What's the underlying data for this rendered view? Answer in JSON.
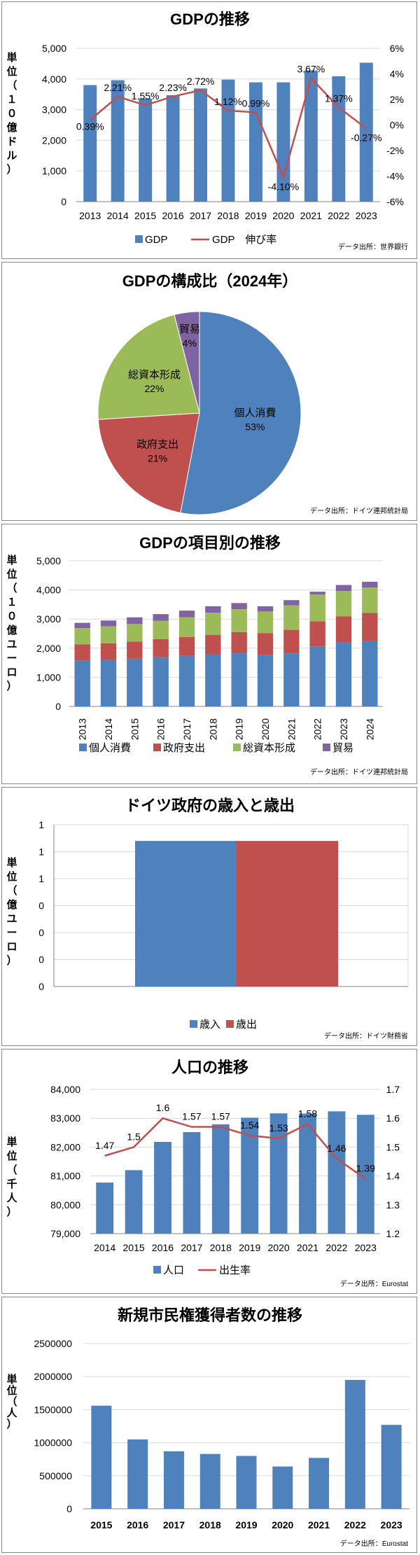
{
  "colors": {
    "blue": "#4f81bd",
    "red": "#c0504d",
    "green": "#9bbb59",
    "purple": "#8064a2",
    "line": "#c0504d",
    "grid": "#d9d9d9"
  },
  "chart_data": [
    {
      "id": "c1",
      "type": "bar+line",
      "title": "GDPの推移",
      "ylabel": "単位（１０億ドル）",
      "source": "データ出所：世界銀行",
      "categories": [
        "2013",
        "2014",
        "2015",
        "2016",
        "2017",
        "2018",
        "2019",
        "2020",
        "2021",
        "2022",
        "2023"
      ],
      "ylim": [
        0,
        5000
      ],
      "yticks": [
        "0",
        "1,000",
        "2,000",
        "3,000",
        "4,000",
        "5,000"
      ],
      "y2lim": [
        -6,
        6
      ],
      "y2ticks": [
        "-6%",
        "-4%",
        "-2%",
        "0%",
        "2%",
        "4%",
        "6%"
      ],
      "series": [
        {
          "name": "GDP",
          "type": "bar",
          "values": [
            3800,
            3960,
            3360,
            3470,
            3690,
            3980,
            3890,
            3890,
            4280,
            4090,
            4530
          ]
        },
        {
          "name": "GDP　伸び率",
          "type": "line",
          "axis": "right",
          "values": [
            0.39,
            2.21,
            1.55,
            2.23,
            2.72,
            1.12,
            0.99,
            -4.1,
            3.67,
            1.37,
            -0.27
          ],
          "labels": [
            "0.39%",
            "2.21%",
            "1.55%",
            "2.23%",
            "2.72%",
            "1.12%",
            "0.99%",
            "-4.10%",
            "3.67%",
            "1.37%",
            "-0.27%"
          ]
        }
      ]
    },
    {
      "id": "c2",
      "type": "pie",
      "title": "GDPの構成比（2024年）",
      "source": "データ出所：ドイツ連邦統計局",
      "slices": [
        {
          "name": "個人消費",
          "value": 53,
          "label": "53%"
        },
        {
          "name": "政府支出",
          "value": 21,
          "label": "21%"
        },
        {
          "name": "総資本形成",
          "value": 22,
          "label": "22%"
        },
        {
          "name": "貿易",
          "value": 4,
          "label": "4%"
        }
      ]
    },
    {
      "id": "c3",
      "type": "stacked-bar",
      "title": "GDPの項目別の推移",
      "ylabel": "単位（１０億ユーロ）",
      "source": "データ出所：ドイツ連邦統計局",
      "categories": [
        "2013",
        "2014",
        "2015",
        "2016",
        "2017",
        "2018",
        "2019",
        "2020",
        "2021",
        "2022",
        "2023",
        "2024"
      ],
      "ylim": [
        0,
        5000
      ],
      "yticks": [
        "0",
        "1,000",
        "2,000",
        "3,000",
        "4,000",
        "5,000"
      ],
      "series": [
        {
          "name": "個人消費",
          "values": [
            1570,
            1600,
            1640,
            1690,
            1740,
            1790,
            1840,
            1760,
            1820,
            2060,
            2190,
            2260
          ]
        },
        {
          "name": "政府支出",
          "values": [
            560,
            570,
            590,
            620,
            640,
            670,
            710,
            760,
            810,
            860,
            900,
            950
          ]
        },
        {
          "name": "総資本形成",
          "values": [
            560,
            580,
            600,
            630,
            680,
            760,
            790,
            740,
            840,
            920,
            870,
            870
          ]
        },
        {
          "name": "貿易",
          "values": [
            180,
            200,
            230,
            230,
            230,
            220,
            210,
            180,
            180,
            100,
            210,
            200
          ]
        }
      ]
    },
    {
      "id": "c4",
      "type": "bar",
      "title": "ドイツ政府の歳入と歳出",
      "ylabel": "単位（億ユーロ）",
      "source": "データ出所：ドイツ財務省",
      "categories": [
        ""
      ],
      "ylim": [
        0,
        1
      ],
      "yticks": [
        "0",
        "0",
        "0",
        "0",
        "1",
        "1",
        "1"
      ],
      "series": [
        {
          "name": "歳入",
          "values": [
            1
          ]
        },
        {
          "name": "歳出",
          "values": [
            1
          ]
        }
      ]
    },
    {
      "id": "c5",
      "type": "bar+line",
      "title": "人口の推移",
      "ylabel": "単位（千人）",
      "source": "データ出所：Eurostat",
      "categories": [
        "2014",
        "2015",
        "2016",
        "2017",
        "2018",
        "2019",
        "2020",
        "2021",
        "2022",
        "2023"
      ],
      "ylim": [
        79000,
        84000
      ],
      "yticks": [
        "79,000",
        "80,000",
        "81,000",
        "82,000",
        "83,000",
        "84,000"
      ],
      "y2lim": [
        1.2,
        1.7
      ],
      "y2ticks": [
        "1.2",
        "1.3",
        "1.4",
        "1.5",
        "1.6",
        "1.7"
      ],
      "series": [
        {
          "name": "人口",
          "type": "bar",
          "values": [
            80770,
            81200,
            82180,
            82520,
            82790,
            83020,
            83170,
            83160,
            83240,
            83120
          ]
        },
        {
          "name": "出生率",
          "type": "line",
          "axis": "right",
          "values": [
            1.47,
            1.5,
            1.6,
            1.57,
            1.57,
            1.54,
            1.53,
            1.58,
            1.46,
            1.39
          ],
          "labels": [
            "1.47",
            "1.5",
            "1.6",
            "1.57",
            "1.57",
            "1.54",
            "1.53",
            "1.58",
            "1.46",
            "1.39"
          ]
        }
      ]
    },
    {
      "id": "c6",
      "type": "bar",
      "title": "新規市民権獲得者数の推移",
      "ylabel": "単位（人）",
      "source": "データ出所：Eurostat",
      "categories": [
        "2015",
        "2016",
        "2017",
        "2018",
        "2019",
        "2020",
        "2021",
        "2022",
        "2023"
      ],
      "ylim": [
        0,
        2500000
      ],
      "yticks": [
        "0",
        "500000",
        "1000000",
        "1500000",
        "2000000",
        "2500000"
      ],
      "series": [
        {
          "name": "",
          "values": [
            1560000,
            1050000,
            870000,
            830000,
            800000,
            640000,
            770000,
            1950000,
            1270000
          ]
        }
      ]
    }
  ]
}
